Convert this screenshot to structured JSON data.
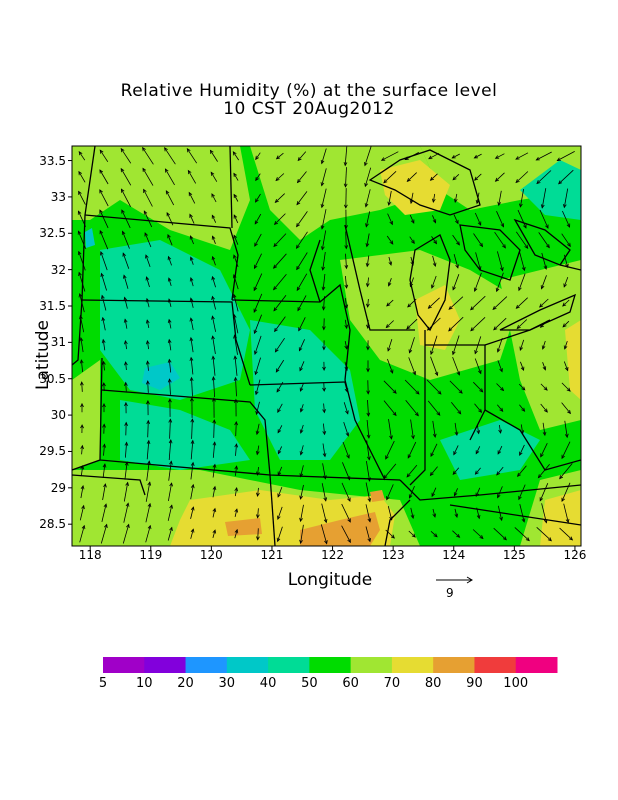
{
  "title_line1": "Relative Humidity (%) at the surface level",
  "title_line2": "10 CST 20Aug2012",
  "axis": {
    "xlabel": "Longitude",
    "ylabel": "Latitude",
    "xticks": [
      "118",
      "119",
      "120",
      "121",
      "122",
      "123",
      "124",
      "125",
      "126"
    ],
    "yticks": [
      "33.5",
      "33",
      "32.5",
      "32",
      "31.5",
      "31",
      "30.5",
      "30",
      "29.5",
      "29",
      "28.5"
    ],
    "xlim": [
      117.7,
      126.1
    ],
    "ylim": [
      28.2,
      33.7
    ]
  },
  "vector_reference": {
    "label": "9"
  },
  "colorbar": {
    "colors": [
      "#a000c8",
      "#8200dc",
      "#1e96ff",
      "#00c8c8",
      "#00dc96",
      "#00dc00",
      "#a0e632",
      "#e6dc32",
      "#e6a032",
      "#f03c3c",
      "#f00080"
    ],
    "labels": [
      "5",
      "10",
      "20",
      "30",
      "40",
      "50",
      "60",
      "70",
      "80",
      "90",
      "100"
    ]
  }
}
